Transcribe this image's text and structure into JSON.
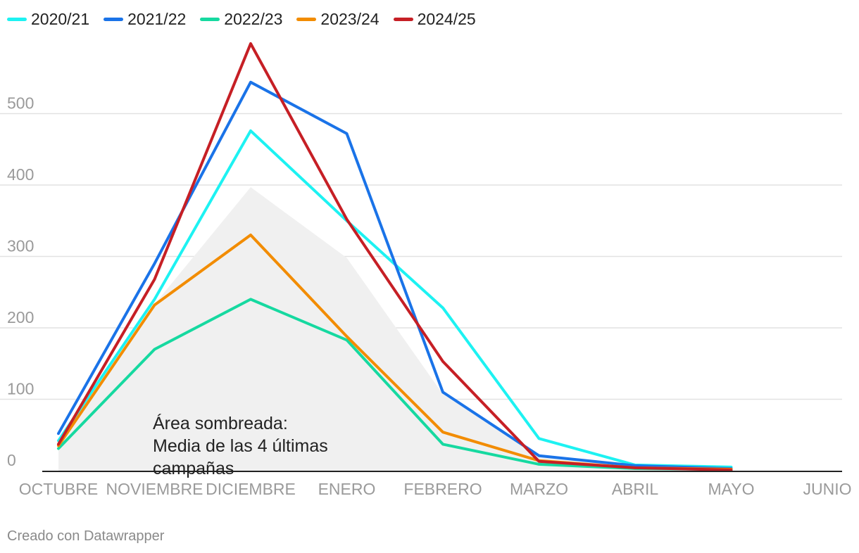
{
  "chart_data": {
    "type": "line",
    "title": "",
    "xlabel": "",
    "ylabel": "",
    "categories": [
      "OCTUBRE",
      "NOVIEMBRE",
      "DICIEMBRE",
      "ENERO",
      "FEBRERO",
      "MARZO",
      "ABRIL",
      "MAYO",
      "JUNIO"
    ],
    "ylim": [
      0,
      600
    ],
    "yticks": [
      0,
      100,
      200,
      300,
      400,
      500
    ],
    "series": [
      {
        "name": "2020/21",
        "color": "#1df2f2",
        "values": [
          42,
          240,
          476,
          350,
          228,
          45,
          8,
          5,
          null
        ]
      },
      {
        "name": "2021/22",
        "color": "#1a73e8",
        "values": [
          52,
          290,
          544,
          472,
          110,
          21,
          7,
          3,
          null
        ]
      },
      {
        "name": "2022/23",
        "color": "#16d9a0",
        "values": [
          31,
          170,
          240,
          183,
          37,
          9,
          3,
          2,
          null
        ]
      },
      {
        "name": "2023/24",
        "color": "#f28c00",
        "values": [
          35,
          232,
          330,
          188,
          54,
          14,
          4,
          2,
          null
        ]
      },
      {
        "name": "2024/25",
        "color": "#c61f25",
        "values": [
          37,
          268,
          598,
          352,
          153,
          13,
          4,
          1,
          null
        ]
      }
    ],
    "shaded_area": {
      "name": "Media de las 4 últimas campañas",
      "color": "#f0f0f0",
      "values": [
        40,
        233,
        397,
        298,
        107,
        22,
        6,
        3,
        null
      ]
    },
    "annotation": [
      "Área sombreada:",
      "Media de las 4 últimas",
      "campañas"
    ],
    "grid": true,
    "legend": "top-left"
  },
  "credit": "Creado con Datawrapper"
}
